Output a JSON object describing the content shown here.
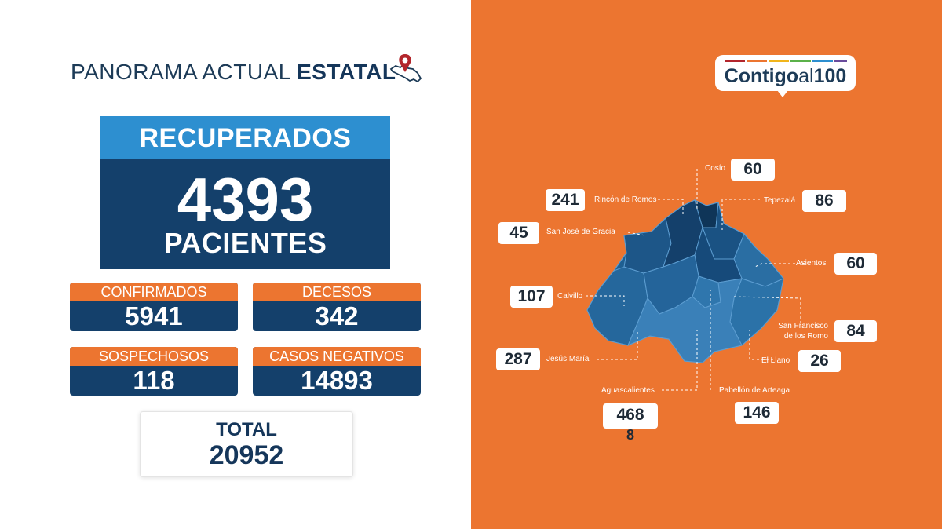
{
  "header": {
    "title_prefix": "PANORAMA ACTUAL ",
    "title_bold": "ESTATAL",
    "icon": "mexico-map-pin-icon"
  },
  "recuperados": {
    "label": "RECUPERADOS",
    "value": "4393",
    "unit": "PACIENTES"
  },
  "stats": [
    {
      "label": "CONFIRMADOS",
      "value": "5941"
    },
    {
      "label": "DECESOS",
      "value": "342"
    },
    {
      "label": "SOSPECHOSOS",
      "value": "118"
    },
    {
      "label": "CASOS NEGATIVOS",
      "value": "14893"
    }
  ],
  "total": {
    "label": "TOTAL",
    "value": "20952"
  },
  "logo": {
    "word": "Contigo",
    "small": "al",
    "number": "100"
  },
  "municipios": [
    {
      "name": "Cosío",
      "value": "60"
    },
    {
      "name": "Rincón de Romos",
      "value": "241"
    },
    {
      "name": "Tepezalá",
      "value": "86"
    },
    {
      "name": "San José de Gracia",
      "value": "45"
    },
    {
      "name": "Asientos",
      "value": "60"
    },
    {
      "name": "Calvillo",
      "value": "107"
    },
    {
      "name_line1": "San Francisco",
      "name_line2": "de los Romo",
      "value": "84"
    },
    {
      "name": "Jesús María",
      "value": "287"
    },
    {
      "name": "El Llano",
      "value": "26"
    },
    {
      "name": "Aguascalientes",
      "value_line1": "468",
      "value_line2": "8"
    },
    {
      "name": "Pabellón de Arteaga",
      "value": "146"
    }
  ],
  "colors": {
    "navy": "#14406b",
    "accent_blue": "#2d8fd0",
    "orange": "#ec7530",
    "map_blue": "#1f5f91"
  }
}
